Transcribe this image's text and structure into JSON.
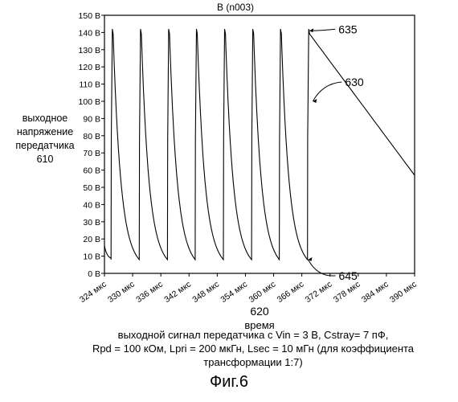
{
  "chart_data": {
    "type": "line",
    "title": "В (n003)",
    "y_ticks": [
      "0 В",
      "10 В",
      "20 В",
      "30 В",
      "40 В",
      "50 В",
      "60 В",
      "70 В",
      "80 В",
      "90 В",
      "100 В",
      "110 В",
      "120 В",
      "130 В",
      "140 В",
      "150 В"
    ],
    "x_ticks": [
      "324 мкс",
      "330 мкс",
      "336 мкс",
      "342 мкс",
      "348 мкс",
      "354 мкс",
      "360 мкс",
      "366 мкс",
      "372 мкс",
      "378 мкс",
      "384 мкс",
      "390 мкс"
    ],
    "ylim": [
      0,
      150
    ],
    "xlim": [
      324,
      390
    ],
    "xlabel_number": "620",
    "xlabel": "время",
    "ylabel": [
      "выходное",
      "напряжение",
      "передатчика",
      "610"
    ],
    "grid": false,
    "series": [
      {
        "pulse_times_us": [
          325.4,
          331.4,
          337.4,
          343.3,
          349.3,
          355.3,
          361.2,
          367.2
        ],
        "peak_v": 142,
        "trough_v": 8,
        "initial_v": 16,
        "end_v": 57,
        "decay_tau_us": 1.6
      }
    ],
    "annotations": [
      {
        "label": "635",
        "target_x": 367.3,
        "target_y": 141
      },
      {
        "label": "630",
        "target_x": 368.0,
        "target_y": 100
      },
      {
        "label": "645",
        "target_x": 367.0,
        "target_y": 8
      }
    ]
  },
  "caption": {
    "line1": "выходной сигнал передатчика с Vin = 3 В, Cstray= 7 пФ,",
    "line2": "Rpd = 100 кОм, Lpri = 200 мкГн, Lsec = 10 мГн (для коэффициента",
    "line3": "трансформации 1:7)"
  },
  "figure_label": "Фиг.6"
}
